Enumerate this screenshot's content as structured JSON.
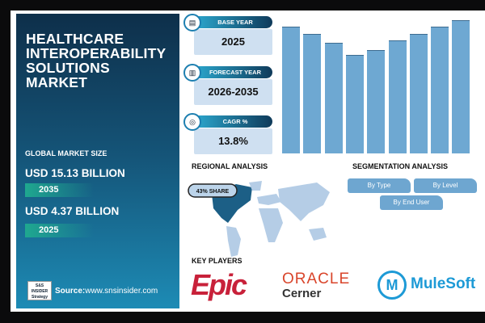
{
  "title_lines": [
    "HEALTHCARE",
    "INTEROPERABILITY",
    "SOLUTIONS",
    "MARKET"
  ],
  "market_size": {
    "label": "GLOBAL MARKET SIZE",
    "value_2035": "USD 15.13 BILLION",
    "year_2035": "2035",
    "value_2025": "USD 4.37 BILLION",
    "year_2025": "2025"
  },
  "source": {
    "label": "Source:",
    "url": "www.snsinsider.com",
    "logo_text": "S&S INSIDER Strategy & Stats"
  },
  "info": [
    {
      "label": "BASE YEAR",
      "value": "2025",
      "icon": "document-icon"
    },
    {
      "label": "FORECAST YEAR",
      "value": "2026-2035",
      "icon": "chart-icon"
    },
    {
      "label": "CAGR %",
      "value": "13.8%",
      "icon": "target-icon"
    }
  ],
  "chart_data": {
    "type": "bar",
    "values": [
      157,
      148,
      137,
      122,
      128,
      140,
      148,
      157,
      165
    ],
    "color": "#6ea8d2"
  },
  "regional": {
    "title": "REGIONAL ANALYSIS",
    "badge": "43% SHARE"
  },
  "segmentation": {
    "title": "SEGMENTATION ANALYSIS",
    "items": [
      "By Type",
      "By Level",
      "By End User"
    ]
  },
  "key_players": {
    "title": "KEY PLAYERS",
    "players": [
      "Epic",
      "ORACLE",
      "Cerner",
      "MuleSoft"
    ]
  }
}
